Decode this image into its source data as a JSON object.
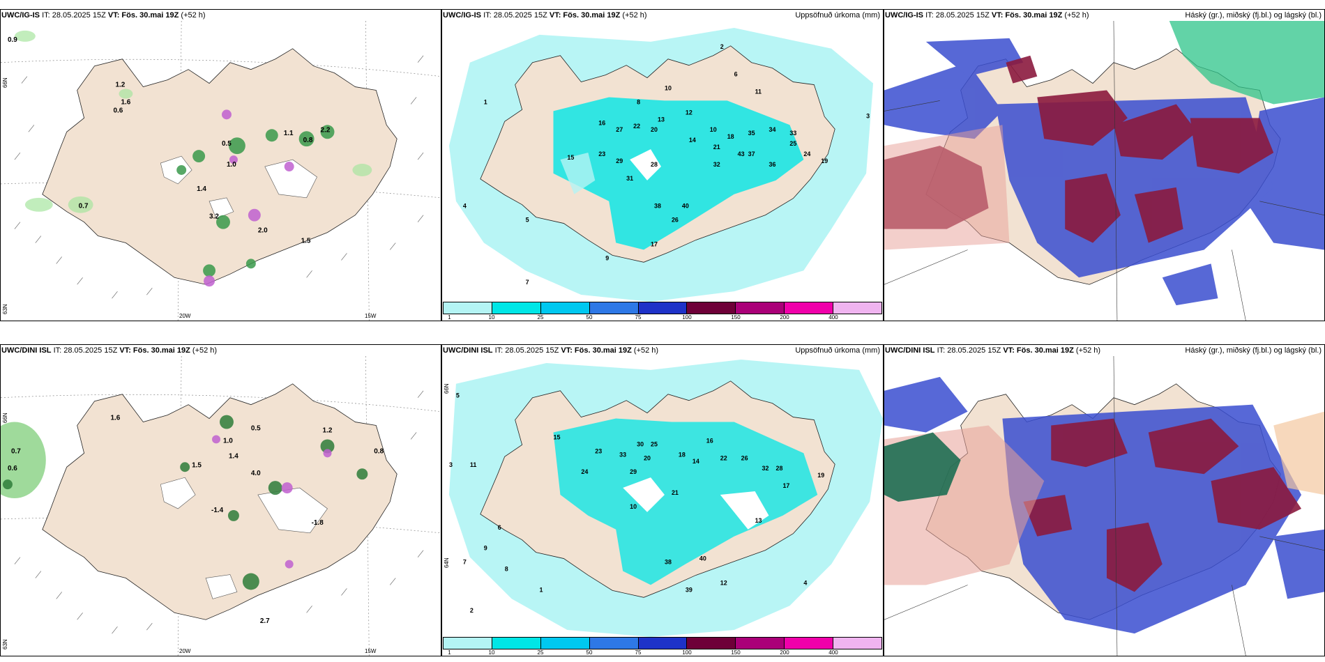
{
  "panels": [
    {
      "model": "UWC/IG-IS",
      "it": "IT: 28.05.2025 15Z",
      "vt_label": "VT:",
      "vt": "Fös. 30.mai 19Z",
      "lead": "(+52 h)",
      "right": "",
      "lat_labels": [
        "66N",
        "64N",
        "63N"
      ],
      "lon_labels": [
        "20W",
        "15W"
      ]
    },
    {
      "model": "UWC/IG-IS",
      "it": "IT: 28.05.2025 15Z",
      "vt_label": "VT:",
      "vt": "Fös. 30.mai 19Z",
      "lead": "(+52 h)",
      "right": "Uppsöfnuð úrkoma (mm)"
    },
    {
      "model": "UWC/IG-IS",
      "it": "IT: 28.05.2025 15Z",
      "vt_label": "VT:",
      "vt": "Fös. 30.mai 19Z",
      "lead": "(+52 h)",
      "right": "Háský (gr.), miðský (fj.bl.) og lágský (bl.)"
    },
    {
      "model": "UWC/DINI ISL",
      "it": "IT: 28.05.2025 15Z",
      "vt_label": "VT:",
      "vt": "Fös. 30.mai 19Z",
      "lead": "(+52 h)",
      "right": "",
      "lat_labels": [
        "66N",
        "64N",
        "63N"
      ],
      "lon_labels": [
        "20W",
        "15W"
      ]
    },
    {
      "model": "UWC/DINI ISL",
      "it": "IT: 28.05.2025 15Z",
      "vt_label": "VT:",
      "vt": "Fös. 30.mai 19Z",
      "lead": "(+52 h)",
      "right": "Uppsöfnuð úrkoma (mm)",
      "lat_labels": [
        "66N",
        "64N"
      ]
    },
    {
      "model": "UWC/DINI ISL",
      "it": "IT: 28.05.2025 15Z",
      "vt_label": "VT:",
      "vt": "Fös. 30.mai 19Z",
      "lead": "(+52 h)",
      "right": "Háský (gr.), miðský (fj.bl.) og lágský (bl.)"
    }
  ],
  "colorbar": {
    "colors": [
      "#b4f4f4",
      "#00e6e6",
      "#00c8f0",
      "#2e78e6",
      "#1e32c8",
      "#6e0038",
      "#aa0078",
      "#f000aa",
      "#f0b4f0"
    ],
    "labels": [
      "1",
      "10",
      "25",
      "50",
      "75",
      "100",
      "150",
      "200",
      "400"
    ]
  },
  "colors": {
    "land": "#f2e2d2",
    "water": "#ffffff",
    "precip_light": "#b4f4f4",
    "cloud_high": "#8b1a3e",
    "cloud_mid": "#3a4ed0",
    "cloud_low": "#2ec48a"
  },
  "precip_values_top": [
    "1",
    "3",
    "2",
    "4",
    "8",
    "10",
    "6",
    "11",
    "13",
    "15",
    "16",
    "27",
    "22",
    "20",
    "12",
    "10",
    "18",
    "35",
    "34",
    "33",
    "14",
    "23",
    "21",
    "40",
    "43",
    "32",
    "25",
    "24",
    "19",
    "29",
    "31",
    "36",
    "37",
    "28",
    "38",
    "26",
    "17",
    "9",
    "5",
    "7"
  ],
  "precip_values_bottom": [
    "3",
    "11",
    "15",
    "23",
    "33",
    "30",
    "25",
    "18",
    "20",
    "14",
    "16",
    "22",
    "26",
    "32",
    "28",
    "24",
    "21",
    "19",
    "17",
    "29",
    "40",
    "38",
    "39",
    "13",
    "12",
    "10",
    "9",
    "8",
    "7",
    "6",
    "5",
    "4",
    "2",
    "1"
  ],
  "wind_values_top": [
    "0.9",
    "1.2",
    "1.6",
    "0.6",
    "0.5",
    "1.0",
    "1.1",
    "2.2",
    "0.8",
    "0.7",
    "1.4",
    "1.5",
    "2.0",
    "3.2"
  ],
  "wind_values_bottom": [
    "0.7",
    "0.6",
    "1.6",
    "1.0",
    "1.2",
    "0.5",
    "0.8",
    "1.4",
    "4.0",
    "-1.4",
    "-1.8",
    "1.5",
    "2.7"
  ]
}
